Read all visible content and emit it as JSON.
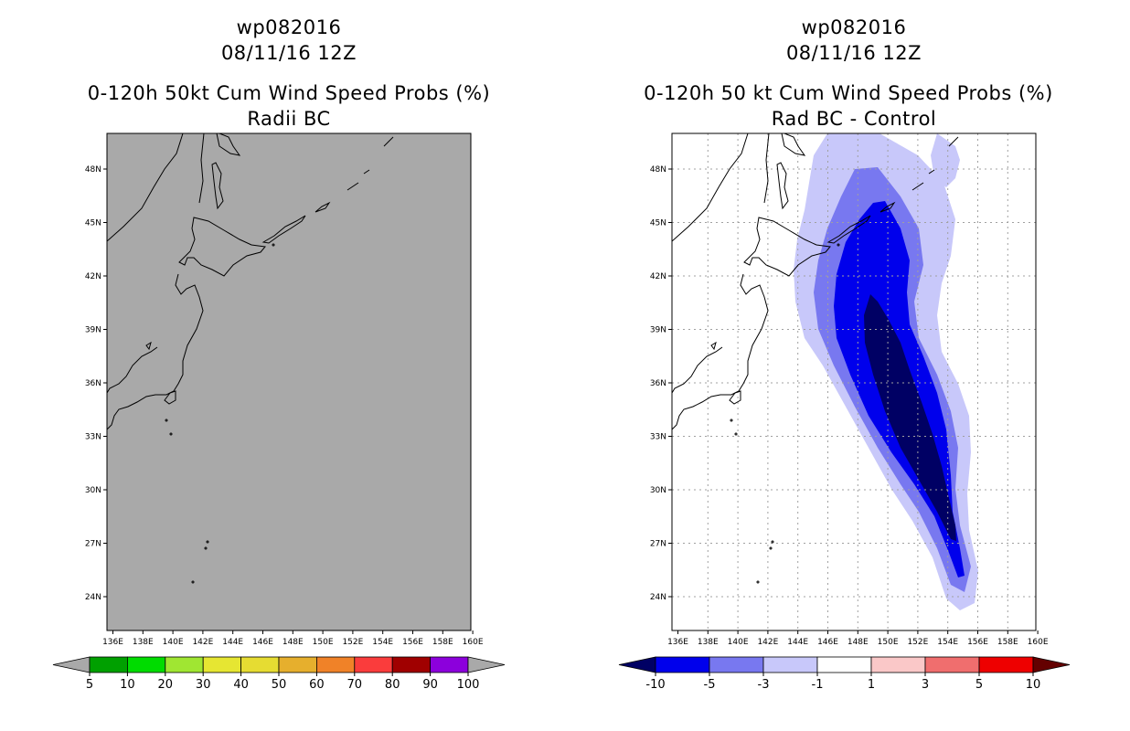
{
  "left": {
    "title1": "wp082016",
    "title2": "08/11/16 12Z",
    "title3": "0-120h 50kt Cum Wind Speed Probs (%)",
    "title4": "Radii BC",
    "background": "#a9a9a9",
    "colorbar": {
      "colors": [
        "#a9a9a9",
        "#00a000",
        "#00dc00",
        "#a0e632",
        "#e6e632",
        "#e6dc32",
        "#e6af2d",
        "#f08228",
        "#fa3c3c",
        "#a00000",
        "#8c00dc",
        "#a9a9a9"
      ],
      "labels": [
        "5",
        "10",
        "20",
        "30",
        "40",
        "50",
        "60",
        "70",
        "80",
        "90",
        "100"
      ]
    }
  },
  "right": {
    "title1": "wp082016",
    "title2": "08/11/16 12Z",
    "title3": "0-120h 50 kt Cum Wind Speed Probs (%)",
    "title4": "Rad BC - Control",
    "background": "#ffffff",
    "levels": [
      {
        "range": "-1 to -3",
        "color": "#c8c8fa"
      },
      {
        "range": "-3 to -5",
        "color": "#7878f0"
      },
      {
        "range": "-5 to -10",
        "color": "#0000ec"
      },
      {
        "range": "< -10",
        "color": "#000064"
      }
    ],
    "colorbar": {
      "colors": [
        "#000064",
        "#0000ec",
        "#7878f0",
        "#c8c8fa",
        "#ffffff",
        "#fac8c8",
        "#f06e6e",
        "#ee0000",
        "#640000"
      ],
      "labels": [
        "-10",
        "-5",
        "-3",
        "-1",
        "1",
        "3",
        "5",
        "10"
      ]
    }
  },
  "axes": {
    "lon_ticks": [
      "136E",
      "138E",
      "140E",
      "142E",
      "144E",
      "146E",
      "148E",
      "150E",
      "152E",
      "154E",
      "156E",
      "158E",
      "160E"
    ],
    "lat_ticks": [
      "24N",
      "27N",
      "30N",
      "33N",
      "36N",
      "39N",
      "42N",
      "45N",
      "48N"
    ]
  }
}
